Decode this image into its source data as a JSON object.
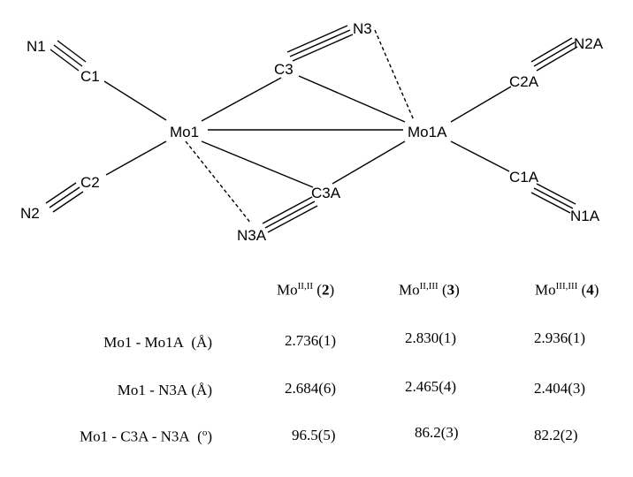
{
  "diagram": {
    "atoms": {
      "N1": "N1",
      "C1": "C1",
      "Mo1": "Mo1",
      "C2": "C2",
      "N2": "N2",
      "N3A": "N3A",
      "C3": "C3",
      "N3": "N3",
      "Mo1A": "Mo1A",
      "C3A": "C3A",
      "C2A": "C2A",
      "N2A": "N2A",
      "C1A": "C1A",
      "N1A": "N1A"
    }
  },
  "table": {
    "columns": [
      {
        "base": "Mo",
        "sup": "II,II",
        "label": "2"
      },
      {
        "base": "Mo",
        "sup": "II,III",
        "label": "3"
      },
      {
        "base": "Mo",
        "sup": "III,III",
        "label": "4"
      }
    ],
    "rows": [
      {
        "label": "Mo1 - Mo1A",
        "unit": "(Å)",
        "values": [
          "2.736(1)",
          "2.830(1)",
          "2.936(1)"
        ]
      },
      {
        "label": "Mo1 - N3A",
        "unit": "(Å)",
        "values": [
          "2.684(6)",
          "2.465(4)",
          "2.404(3)"
        ]
      },
      {
        "label": "Mo1 - C3A - N3A",
        "unit": "(o)",
        "values": [
          "96.5(5)",
          "86.2(3)",
          "82.2(2)"
        ]
      }
    ]
  }
}
